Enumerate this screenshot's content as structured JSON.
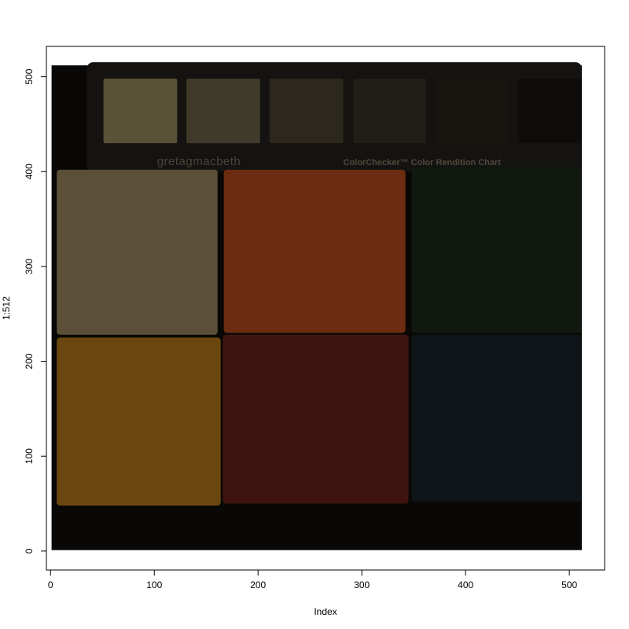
{
  "chart_data": {
    "type": "image",
    "xlabel": "Index",
    "ylabel": "1:512",
    "xlim": [
      -4,
      534
    ],
    "ylim": [
      -20,
      532
    ],
    "xticks": [
      0,
      100,
      200,
      300,
      400,
      500
    ],
    "yticks": [
      0,
      100,
      200,
      300,
      400,
      500
    ],
    "image_extent": {
      "x": [
        1,
        512
      ],
      "y": [
        1,
        512
      ]
    },
    "image_background": "#0a0806",
    "top_swatches": [
      {
        "x": [
          51,
          122
        ],
        "y": [
          430,
          498
        ],
        "color": "#5a5236"
      },
      {
        "x": [
          131,
          202
        ],
        "y": [
          430,
          498
        ],
        "color": "#403a2a"
      },
      {
        "x": [
          211,
          282
        ],
        "y": [
          430,
          498
        ],
        "color": "#2d281e"
      },
      {
        "x": [
          292,
          362
        ],
        "y": [
          430,
          498
        ],
        "color": "#201e17"
      },
      {
        "x": [
          371,
          442
        ],
        "y": [
          430,
          498
        ],
        "color": "#17150f"
      },
      {
        "x": [
          451,
          512
        ],
        "y": [
          430,
          498
        ],
        "color": "#0e0c0a"
      }
    ],
    "large_patches": [
      {
        "x": [
          6,
          161
        ],
        "y": [
          228,
          402
        ],
        "color": "#5b4f38"
      },
      {
        "x": [
          167,
          342
        ],
        "y": [
          230,
          402
        ],
        "color": "#6b2c12"
      },
      {
        "x": [
          348,
          512
        ],
        "y": [
          230,
          405
        ],
        "color": "#101810"
      },
      {
        "x": [
          6,
          164
        ],
        "y": [
          48,
          225
        ],
        "color": "#6b4710"
      },
      {
        "x": [
          166,
          345
        ],
        "y": [
          50,
          228
        ],
        "color": "#3e1410"
      },
      {
        "x": [
          348,
          512
        ],
        "y": [
          52,
          228
        ],
        "color": "#0e1418"
      }
    ],
    "chart_label": {
      "brand": "gretagmacbeth",
      "title": "ColorChecker™ Color Rendition Chart",
      "brand_color": "#4a4438",
      "title_color": "#4f4a3e"
    }
  }
}
